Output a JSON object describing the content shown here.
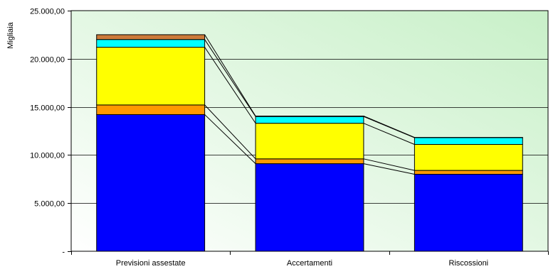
{
  "chart_data": {
    "type": "bar",
    "stacked": true,
    "title": "",
    "xlabel": "",
    "ylabel": "Migliaia",
    "ylim": [
      0,
      25000
    ],
    "yticks": [
      0,
      5000,
      10000,
      15000,
      20000,
      25000
    ],
    "ytick_labels": [
      "-",
      "5.000,00",
      "10.000,00",
      "15.000,00",
      "20.000,00",
      "25.000,00"
    ],
    "categories": [
      "Previsioni assestate",
      "Accertamenti",
      "Riscossioni"
    ],
    "series": [
      {
        "color": "#0000ff",
        "values": [
          14200,
          9100,
          8000
        ]
      },
      {
        "color": "#ff9900",
        "values": [
          1000,
          500,
          400
        ]
      },
      {
        "color": "#ffff00",
        "values": [
          6000,
          3700,
          2700
        ]
      },
      {
        "color": "#00ffff",
        "values": [
          800,
          700,
          700
        ]
      },
      {
        "color": "#cc7a3a",
        "values": [
          500,
          50,
          30
        ]
      }
    ],
    "plot_background": [
      "#ffffff",
      "#c8f0c8"
    ],
    "grid": true,
    "connector_lines": true
  }
}
